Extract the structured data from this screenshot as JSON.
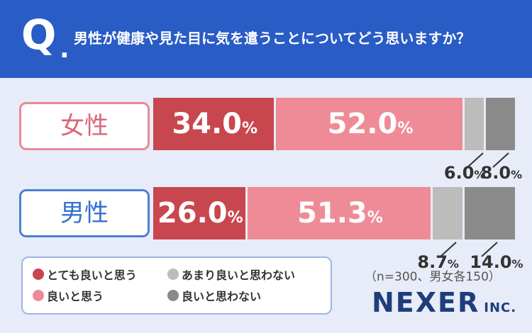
{
  "header": {
    "q_mark": "Q",
    "q_dot": ".",
    "question": "男性が健康や見た目に気を遣うことについてどう思いますか？"
  },
  "rows": {
    "female_label": "女性",
    "male_label": "男性"
  },
  "legend": {
    "items": [
      "とても良いと思う",
      "あまり良いと思わない",
      "良いと思う",
      "良いと思わない"
    ]
  },
  "note": "（n=300、男女各150）",
  "logo": {
    "main": "NEXER",
    "suffix": "INC."
  },
  "colors": {
    "header": "#2a5cc6",
    "very_good": "#c8474f",
    "good": "#ef8b96",
    "not_very": "#bcbcbc",
    "not_good": "#8a8a8a"
  },
  "chart_data": {
    "type": "bar",
    "orientation": "horizontal",
    "stacked": true,
    "unit": "%",
    "categories": [
      "女性",
      "男性"
    ],
    "series": [
      {
        "name": "とても良いと思う",
        "values": [
          34.0,
          26.0
        ]
      },
      {
        "name": "良いと思う",
        "values": [
          52.0,
          51.3
        ]
      },
      {
        "name": "あまり良いと思わない",
        "values": [
          6.0,
          8.7
        ]
      },
      {
        "name": "良いと思わない",
        "values": [
          8.0,
          14.0
        ]
      }
    ],
    "value_labels": [
      [
        "34.0",
        "52.0",
        "6.0",
        "8.0"
      ],
      [
        "26.0",
        "51.3",
        "8.7",
        "14.0"
      ]
    ],
    "xlim": [
      0,
      100
    ],
    "legend_position": "bottom-left"
  }
}
